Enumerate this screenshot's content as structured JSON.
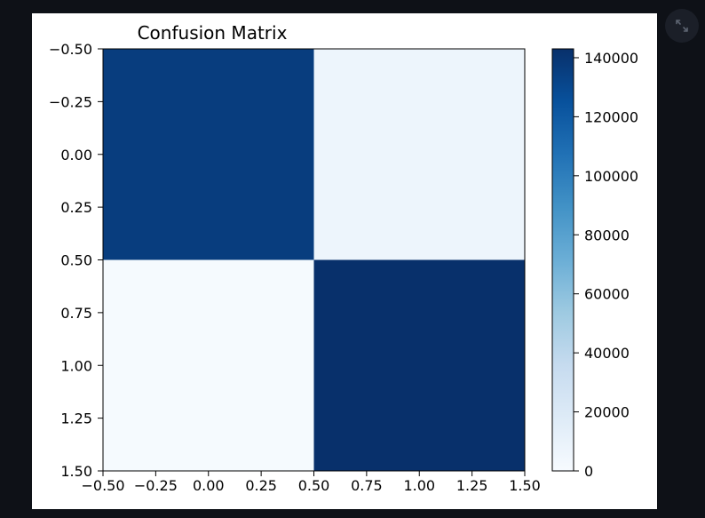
{
  "chart_data": {
    "type": "heatmap",
    "title": "Confusion Matrix",
    "xlabel": "",
    "ylabel": "",
    "matrix": [
      [
        136000,
        7000
      ],
      [
        1500,
        143000
      ]
    ],
    "xlim": [
      -0.5,
      1.5
    ],
    "ylim": [
      1.5,
      -0.5
    ],
    "x_ticks": [
      "−0.50",
      "−0.25",
      "0.00",
      "0.25",
      "0.50",
      "0.75",
      "1.00",
      "1.25",
      "1.50"
    ],
    "y_ticks": [
      "−0.50",
      "−0.25",
      "0.00",
      "0.25",
      "0.50",
      "0.75",
      "1.00",
      "1.25",
      "1.50"
    ],
    "colorbar": {
      "range": [
        0,
        143000
      ],
      "ticks": [
        0,
        20000,
        40000,
        60000,
        80000,
        100000,
        120000,
        140000
      ],
      "tick_labels": [
        "0",
        "20000",
        "40000",
        "60000",
        "80000",
        "100000",
        "120000",
        "140000"
      ],
      "colormap": "Blues",
      "colors": [
        "#f7fbff",
        "#deebf7",
        "#c6dbef",
        "#9ecae1",
        "#6baed6",
        "#4292c6",
        "#2171b5",
        "#08519c",
        "#08306b"
      ]
    },
    "grid": false,
    "legend": "none"
  },
  "toolbar": {
    "expand_icon": "expand-icon"
  }
}
